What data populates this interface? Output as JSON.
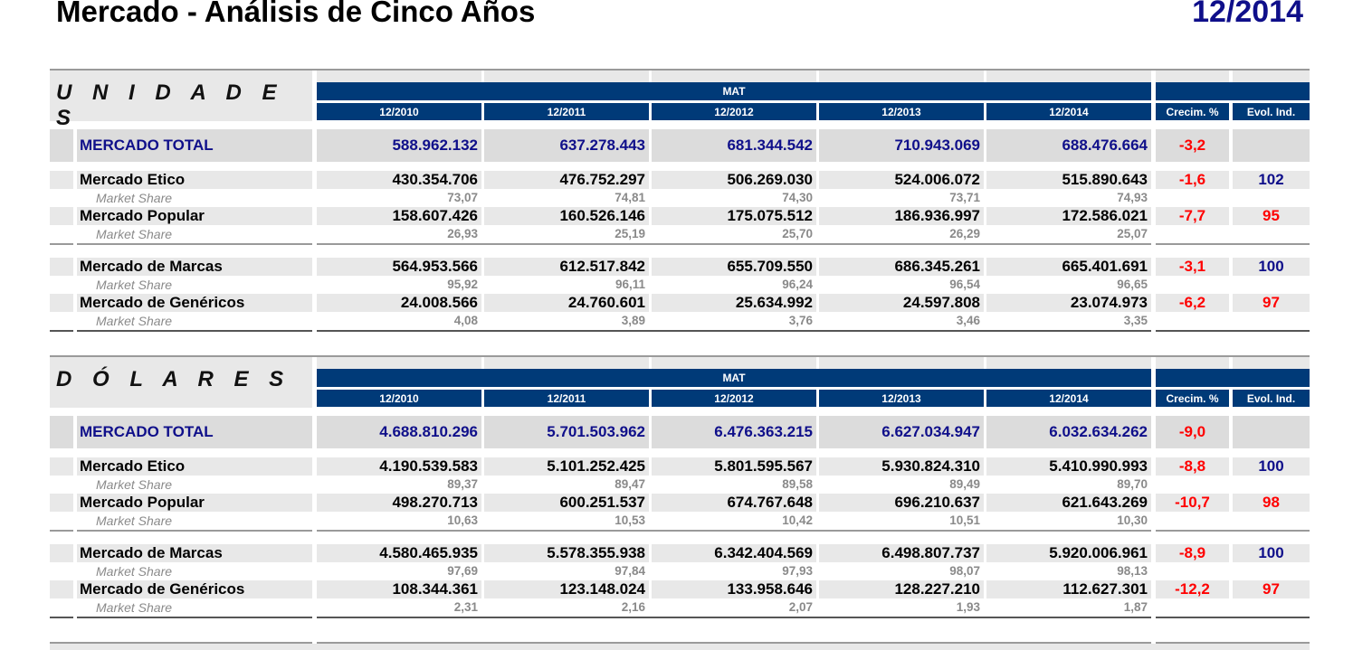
{
  "title": "Mercado - Análisis de Cinco Años",
  "period": "12/2014",
  "header": {
    "group_label": "MAT",
    "years": [
      "12/2010",
      "12/2011",
      "12/2012",
      "12/2013",
      "12/2014"
    ],
    "growth_label": "Crecim. %",
    "evol_label": "Evol. Ind."
  },
  "share_label": "Market Share",
  "colors": {
    "navy": "#003a78",
    "positive": "#0f0f8a",
    "negative": "#ff0000"
  },
  "sections": [
    {
      "name": "U N I D A D E S",
      "total": {
        "label": "MERCADO TOTAL",
        "values": [
          "588.962.132",
          "637.278.443",
          "681.344.542",
          "710.943.069",
          "688.476.664"
        ],
        "growth": "-3,2",
        "evol": ""
      },
      "groups": [
        [
          {
            "label": "Mercado Etico",
            "values": [
              "430.354.706",
              "476.752.297",
              "506.269.030",
              "524.006.072",
              "515.890.643"
            ],
            "share": [
              "73,07",
              "74,81",
              "74,30",
              "73,71",
              "74,93"
            ],
            "growth": "-1,6",
            "evol": "102"
          },
          {
            "label": "Mercado Popular",
            "values": [
              "158.607.426",
              "160.526.146",
              "175.075.512",
              "186.936.997",
              "172.586.021"
            ],
            "share": [
              "26,93",
              "25,19",
              "25,70",
              "26,29",
              "25,07"
            ],
            "growth": "-7,7",
            "evol": "95"
          }
        ],
        [
          {
            "label": "Mercado de Marcas",
            "values": [
              "564.953.566",
              "612.517.842",
              "655.709.550",
              "686.345.261",
              "665.401.691"
            ],
            "share": [
              "95,92",
              "96,11",
              "96,24",
              "96,54",
              "96,65"
            ],
            "growth": "-3,1",
            "evol": "100"
          },
          {
            "label": "Mercado de Genéricos",
            "values": [
              "24.008.566",
              "24.760.601",
              "25.634.992",
              "24.597.808",
              "23.074.973"
            ],
            "share": [
              "4,08",
              "3,89",
              "3,76",
              "3,46",
              "3,35"
            ],
            "growth": "-6,2",
            "evol": "97"
          }
        ]
      ]
    },
    {
      "name": "D Ó L A R E S",
      "total": {
        "label": "MERCADO TOTAL",
        "values": [
          "4.688.810.296",
          "5.701.503.962",
          "6.476.363.215",
          "6.627.034.947",
          "6.032.634.262"
        ],
        "growth": "-9,0",
        "evol": ""
      },
      "groups": [
        [
          {
            "label": "Mercado Etico",
            "values": [
              "4.190.539.583",
              "5.101.252.425",
              "5.801.595.567",
              "5.930.824.310",
              "5.410.990.993"
            ],
            "share": [
              "89,37",
              "89,47",
              "89,58",
              "89,49",
              "89,70"
            ],
            "growth": "-8,8",
            "evol": "100"
          },
          {
            "label": "Mercado Popular",
            "values": [
              "498.270.713",
              "600.251.537",
              "674.767.648",
              "696.210.637",
              "621.643.269"
            ],
            "share": [
              "10,63",
              "10,53",
              "10,42",
              "10,51",
              "10,30"
            ],
            "growth": "-10,7",
            "evol": "98"
          }
        ],
        [
          {
            "label": "Mercado de Marcas",
            "values": [
              "4.580.465.935",
              "5.578.355.938",
              "6.342.404.569",
              "6.498.807.737",
              "5.920.006.961"
            ],
            "share": [
              "97,69",
              "97,84",
              "97,93",
              "98,07",
              "98,13"
            ],
            "growth": "-8,9",
            "evol": "100"
          },
          {
            "label": "Mercado de Genéricos",
            "values": [
              "108.344.361",
              "123.148.024",
              "133.958.646",
              "128.227.210",
              "112.627.301"
            ],
            "share": [
              "2,31",
              "2,16",
              "2,07",
              "1,93",
              "1,87"
            ],
            "growth": "-12,2",
            "evol": "97"
          }
        ]
      ]
    }
  ]
}
